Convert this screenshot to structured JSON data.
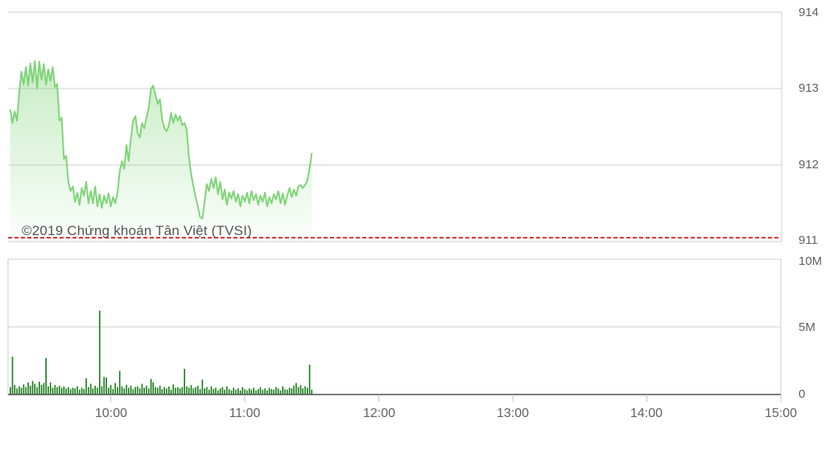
{
  "copyright": "©2019 Chứng khoán Tân Việt (TVSI)",
  "colors": {
    "price_line": "#7fd478",
    "area_fill_top": "#7fd478",
    "volume_bar": "#157a15",
    "grid": "#cccccc",
    "panel_border": "#cccccc",
    "axis_baseline": "#4d4d4d",
    "tick": "#c0c0c0",
    "label_text": "#616161",
    "copyright_text": "#555555",
    "reference_line": "#cc0000"
  },
  "x_axis": {
    "tick_labels": [
      "10:00",
      "11:00",
      "12:00",
      "13:00",
      "14:00",
      "15:00"
    ]
  },
  "chart_data": [
    {
      "type": "area",
      "name": "index-price-intraday",
      "title": "",
      "x_start": "09:15",
      "x_end_of_data": "11:30",
      "x_axis_span": [
        "09:14",
        "15:00"
      ],
      "interval_minutes": 1,
      "ylim": [
        911,
        914
      ],
      "y_ticks": [
        914,
        913,
        912,
        911
      ],
      "y_tick_labels": [
        "914",
        "913",
        "912",
        "911"
      ],
      "grid": true,
      "legend": "none",
      "reference_line_value": 911.05,
      "reference_line_style": "dashed-red",
      "values": [
        912.72,
        912.55,
        912.7,
        912.58,
        912.95,
        913.22,
        913.05,
        913.28,
        913.04,
        913.33,
        913.08,
        913.36,
        913.0,
        913.35,
        913.12,
        913.32,
        913.05,
        913.25,
        913.1,
        913.28,
        913.02,
        913.06,
        912.58,
        912.62,
        912.08,
        912.12,
        911.78,
        911.66,
        911.72,
        911.52,
        911.64,
        911.48,
        911.7,
        911.6,
        911.78,
        911.5,
        911.66,
        911.5,
        911.72,
        911.46,
        911.62,
        911.44,
        911.6,
        911.5,
        911.63,
        911.46,
        911.58,
        911.5,
        911.64,
        911.92,
        912.05,
        911.95,
        912.26,
        912.05,
        912.35,
        912.58,
        912.64,
        912.42,
        912.36,
        912.55,
        912.48,
        912.62,
        912.75,
        912.99,
        913.04,
        912.92,
        912.8,
        912.86,
        912.6,
        912.48,
        912.44,
        912.52,
        912.68,
        912.55,
        912.66,
        912.58,
        912.64,
        912.52,
        912.55,
        912.46,
        912.1,
        911.88,
        911.72,
        911.58,
        911.46,
        911.32,
        911.3,
        911.52,
        911.75,
        911.66,
        911.82,
        911.7,
        911.84,
        911.62,
        911.78,
        911.55,
        911.68,
        911.48,
        911.64,
        911.56,
        911.66,
        911.52,
        911.62,
        911.46,
        911.6,
        911.52,
        911.64,
        911.5,
        911.66,
        911.54,
        911.62,
        911.48,
        911.6,
        911.52,
        911.64,
        911.46,
        911.58,
        911.5,
        911.62,
        911.55,
        911.66,
        911.5,
        911.63,
        911.48,
        911.6,
        911.7,
        911.58,
        911.68,
        911.6,
        911.72,
        911.74,
        911.7,
        911.74,
        911.8,
        911.96,
        912.15
      ]
    },
    {
      "type": "bar",
      "name": "volume-intraday",
      "title": "",
      "x_start": "09:15",
      "x_end_of_data": "11:30",
      "interval_minutes": 1,
      "ylim_millions": [
        0,
        10
      ],
      "y_ticks_millions": [
        10,
        5,
        0
      ],
      "y_tick_labels": [
        "10M",
        "5M",
        "0"
      ],
      "grid": true,
      "values_millions": [
        0.55,
        2.8,
        0.7,
        0.45,
        0.6,
        0.5,
        0.75,
        0.55,
        0.9,
        0.65,
        1.0,
        0.8,
        0.55,
        0.95,
        0.7,
        0.85,
        2.7,
        0.6,
        0.9,
        0.5,
        0.7,
        0.55,
        0.65,
        0.5,
        0.6,
        0.45,
        0.55,
        0.4,
        0.5,
        0.45,
        0.6,
        0.35,
        0.5,
        0.4,
        1.2,
        0.55,
        0.8,
        0.45,
        0.65,
        0.5,
        6.2,
        0.6,
        1.3,
        1.25,
        0.5,
        0.7,
        0.4,
        0.85,
        0.55,
        1.75,
        0.6,
        0.45,
        0.7,
        0.5,
        0.65,
        0.4,
        0.55,
        0.6,
        0.45,
        0.8,
        0.5,
        0.65,
        0.45,
        1.15,
        0.9,
        0.55,
        0.5,
        0.65,
        0.4,
        0.55,
        0.45,
        0.6,
        0.35,
        0.75,
        0.5,
        0.55,
        0.45,
        0.55,
        1.9,
        0.6,
        0.5,
        0.7,
        0.45,
        0.55,
        0.65,
        0.4,
        1.1,
        0.45,
        0.55,
        0.35,
        0.6,
        0.4,
        0.5,
        0.3,
        0.45,
        0.55,
        0.35,
        0.6,
        0.4,
        0.3,
        0.5,
        0.35,
        0.45,
        0.3,
        0.55,
        0.4,
        0.3,
        0.45,
        0.35,
        0.5,
        0.3,
        0.4,
        0.55,
        0.35,
        0.45,
        0.3,
        0.5,
        0.4,
        0.35,
        0.55,
        0.45,
        0.3,
        0.6,
        0.4,
        0.35,
        0.5,
        0.45,
        0.65,
        0.85,
        0.55,
        0.7,
        0.45,
        0.6,
        0.5,
        2.2,
        0.35
      ]
    }
  ]
}
